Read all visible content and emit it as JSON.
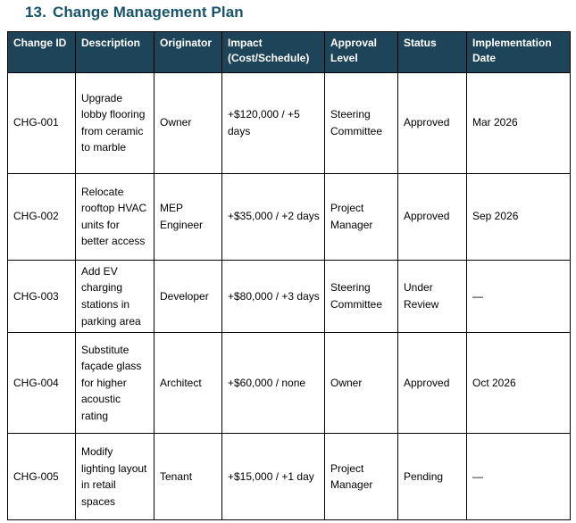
{
  "title": {
    "number": "13.",
    "text": "Change Management Plan"
  },
  "colors": {
    "title": "#17546B",
    "header_bg": "#1D4459",
    "header_text": "#FFFFFF",
    "border": "#000000",
    "body_text": "#000000",
    "page_bg": "#FFFFFF"
  },
  "table": {
    "columns": [
      "Change ID",
      "Description",
      "Originator",
      "Impact (Cost/Schedule)",
      "Approval Level",
      "Status",
      "Implementation Date"
    ],
    "rows": [
      {
        "id": "CHG-001",
        "description": "Upgrade lobby flooring from ceramic to marble",
        "originator": "Owner",
        "impact": "+$120,000 / +5 days",
        "approval_level": "Steering Committee",
        "status": "Approved",
        "implementation_date": "Mar 2026"
      },
      {
        "id": "CHG-002",
        "description": "Relocate rooftop HVAC units for better access",
        "originator": "MEP Engineer",
        "impact": "+$35,000 / +2 days",
        "approval_level": "Project Manager",
        "status": "Approved",
        "implementation_date": "Sep 2026"
      },
      {
        "id": "CHG-003",
        "description": "Add EV charging stations in parking area",
        "originator": "Developer",
        "impact": "+$80,000 / +3 days",
        "approval_level": "Steering Committee",
        "status": "Under Review",
        "implementation_date": "—"
      },
      {
        "id": "CHG-004",
        "description": "Substitute façade glass for higher acoustic rating",
        "originator": "Architect",
        "impact": "+$60,000 / none",
        "approval_level": "Owner",
        "status": "Approved",
        "implementation_date": "Oct 2026"
      },
      {
        "id": "CHG-005",
        "description": "Modify lighting layout in retail spaces",
        "originator": "Tenant",
        "impact": "+$15,000 / +1 day",
        "approval_level": "Project Manager",
        "status": "Pending",
        "implementation_date": "—"
      }
    ]
  }
}
